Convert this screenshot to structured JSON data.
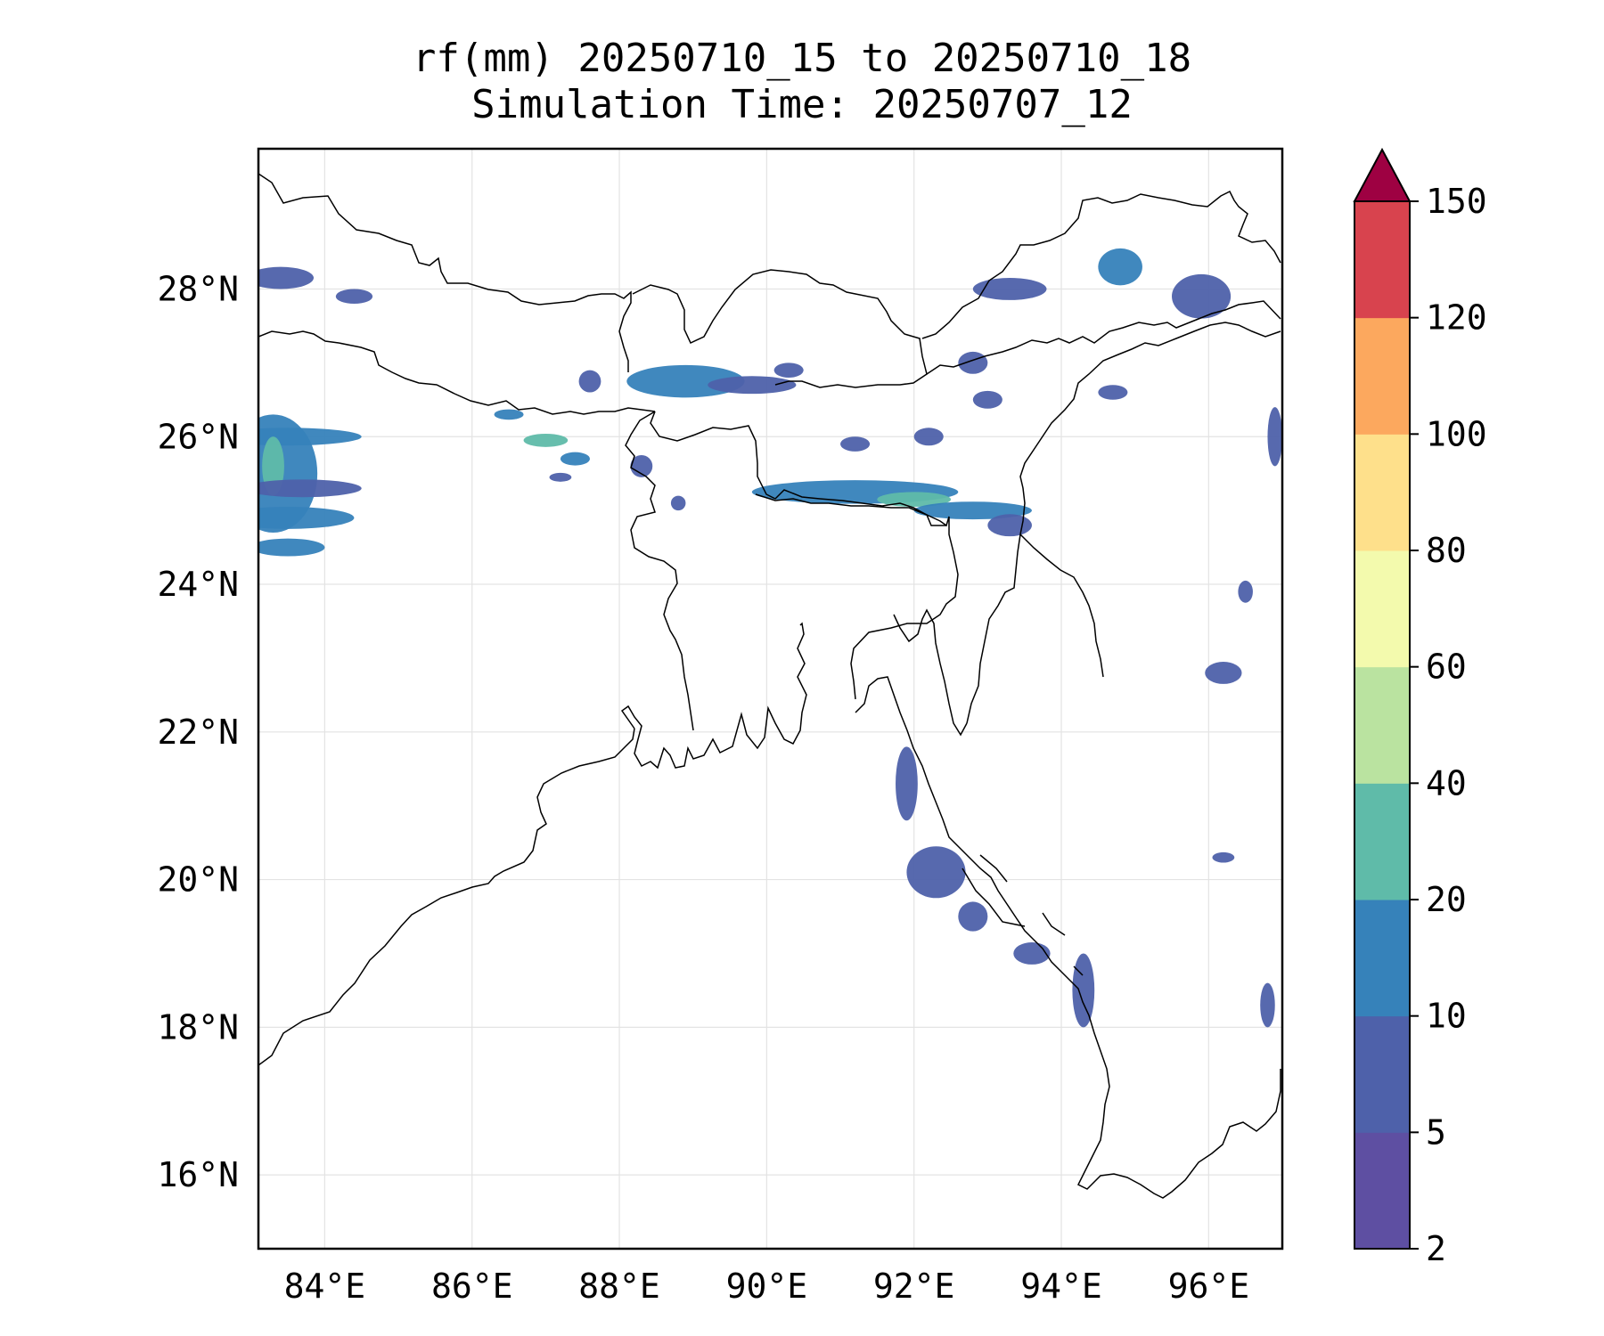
{
  "title": {
    "line1": "rf(mm) 20250710_15 to 20250710_18",
    "line2": "Simulation Time: 20250707_12"
  },
  "map": {
    "lon_range": [
      83.1,
      97.0
    ],
    "lat_range": [
      15.0,
      29.9
    ],
    "lon_ticks": [
      84,
      86,
      88,
      90,
      92,
      94,
      96
    ],
    "lon_labels": [
      "84°E",
      "86°E",
      "88°E",
      "90°E",
      "92°E",
      "94°E",
      "96°E"
    ],
    "lat_ticks": [
      16,
      18,
      20,
      22,
      24,
      26,
      28
    ],
    "lat_labels": [
      "16°N",
      "18°N",
      "20°N",
      "22°N",
      "24°N",
      "26°N",
      "28°N"
    ],
    "gridlines": true,
    "coastline_color": "#000000",
    "rain_cells": [
      {
        "lon": 83.4,
        "lat": 28.15,
        "rlon": 0.45,
        "rlat": 0.15,
        "level": 1
      },
      {
        "lon": 84.4,
        "lat": 27.9,
        "rlon": 0.25,
        "rlat": 0.1,
        "level": 1
      },
      {
        "lon": 83.5,
        "lat": 26.0,
        "rlon": 1.0,
        "rlat": 0.12,
        "level": 2
      },
      {
        "lon": 83.3,
        "lat": 25.5,
        "rlon": 0.6,
        "rlat": 0.8,
        "level": 2
      },
      {
        "lon": 83.3,
        "lat": 25.6,
        "rlon": 0.15,
        "rlat": 0.4,
        "level": 3
      },
      {
        "lon": 83.7,
        "lat": 25.3,
        "rlon": 0.8,
        "rlat": 0.12,
        "level": 1
      },
      {
        "lon": 83.5,
        "lat": 24.9,
        "rlon": 0.9,
        "rlat": 0.15,
        "level": 2
      },
      {
        "lon": 83.5,
        "lat": 24.5,
        "rlon": 0.5,
        "rlat": 0.12,
        "level": 2
      },
      {
        "lon": 88.9,
        "lat": 26.75,
        "rlon": 0.8,
        "rlat": 0.22,
        "level": 2
      },
      {
        "lon": 89.8,
        "lat": 26.7,
        "rlon": 0.6,
        "rlat": 0.12,
        "level": 1
      },
      {
        "lon": 90.3,
        "lat": 26.9,
        "rlon": 0.2,
        "rlat": 0.1,
        "level": 1
      },
      {
        "lon": 87.6,
        "lat": 26.75,
        "rlon": 0.15,
        "rlat": 0.15,
        "level": 1
      },
      {
        "lon": 86.5,
        "lat": 26.3,
        "rlon": 0.2,
        "rlat": 0.07,
        "level": 2
      },
      {
        "lon": 87.0,
        "lat": 25.95,
        "rlon": 0.3,
        "rlat": 0.09,
        "level": 3
      },
      {
        "lon": 87.4,
        "lat": 25.7,
        "rlon": 0.2,
        "rlat": 0.09,
        "level": 2
      },
      {
        "lon": 87.2,
        "lat": 25.45,
        "rlon": 0.15,
        "rlat": 0.06,
        "level": 1
      },
      {
        "lon": 88.3,
        "lat": 25.6,
        "rlon": 0.15,
        "rlat": 0.15,
        "level": 1
      },
      {
        "lon": 88.8,
        "lat": 25.1,
        "rlon": 0.1,
        "rlat": 0.1,
        "level": 1
      },
      {
        "lon": 91.2,
        "lat": 25.25,
        "rlon": 1.4,
        "rlat": 0.16,
        "level": 2
      },
      {
        "lon": 92.0,
        "lat": 25.15,
        "rlon": 0.5,
        "rlat": 0.1,
        "level": 3
      },
      {
        "lon": 92.8,
        "lat": 25.0,
        "rlon": 0.8,
        "rlat": 0.12,
        "level": 2
      },
      {
        "lon": 93.3,
        "lat": 24.8,
        "rlon": 0.3,
        "rlat": 0.15,
        "level": 1
      },
      {
        "lon": 93.3,
        "lat": 28.0,
        "rlon": 0.5,
        "rlat": 0.15,
        "level": 1
      },
      {
        "lon": 94.8,
        "lat": 28.3,
        "rlon": 0.3,
        "rlat": 0.25,
        "level": 2
      },
      {
        "lon": 95.9,
        "lat": 27.9,
        "rlon": 0.4,
        "rlat": 0.3,
        "level": 1
      },
      {
        "lon": 92.8,
        "lat": 27.0,
        "rlon": 0.2,
        "rlat": 0.15,
        "level": 1
      },
      {
        "lon": 93.0,
        "lat": 26.5,
        "rlon": 0.2,
        "rlat": 0.12,
        "level": 1
      },
      {
        "lon": 92.2,
        "lat": 26.0,
        "rlon": 0.2,
        "rlat": 0.12,
        "level": 1
      },
      {
        "lon": 91.2,
        "lat": 25.9,
        "rlon": 0.2,
        "rlat": 0.1,
        "level": 1
      },
      {
        "lon": 94.7,
        "lat": 26.6,
        "rlon": 0.2,
        "rlat": 0.1,
        "level": 1
      },
      {
        "lon": 96.9,
        "lat": 26.0,
        "rlon": 0.1,
        "rlat": 0.4,
        "level": 1
      },
      {
        "lon": 96.2,
        "lat": 22.8,
        "rlon": 0.25,
        "rlat": 0.15,
        "level": 1
      },
      {
        "lon": 96.5,
        "lat": 23.9,
        "rlon": 0.1,
        "rlat": 0.15,
        "level": 1
      },
      {
        "lon": 91.9,
        "lat": 21.3,
        "rlon": 0.15,
        "rlat": 0.5,
        "level": 1
      },
      {
        "lon": 92.3,
        "lat": 20.1,
        "rlon": 0.4,
        "rlat": 0.35,
        "level": 1
      },
      {
        "lon": 92.8,
        "lat": 19.5,
        "rlon": 0.2,
        "rlat": 0.2,
        "level": 1
      },
      {
        "lon": 93.6,
        "lat": 19.0,
        "rlon": 0.25,
        "rlat": 0.15,
        "level": 1
      },
      {
        "lon": 94.3,
        "lat": 18.5,
        "rlon": 0.15,
        "rlat": 0.5,
        "level": 1
      },
      {
        "lon": 96.8,
        "lat": 18.3,
        "rlon": 0.1,
        "rlat": 0.3,
        "level": 1
      },
      {
        "lon": 96.2,
        "lat": 20.3,
        "rlon": 0.15,
        "rlat": 0.07,
        "level": 1
      }
    ]
  },
  "colorbar": {
    "levels": [
      "2",
      "5",
      "10",
      "20",
      "40",
      "60",
      "80",
      "100",
      "120",
      "150"
    ],
    "colors": [
      "#5e4fa2",
      "#4e61aa",
      "#3682ba",
      "#5fbba9",
      "#bae3a0",
      "#f3faad",
      "#fee08b",
      "#fca85e",
      "#d8434e"
    ],
    "extend_color": "#9e0142",
    "extend": "max"
  }
}
